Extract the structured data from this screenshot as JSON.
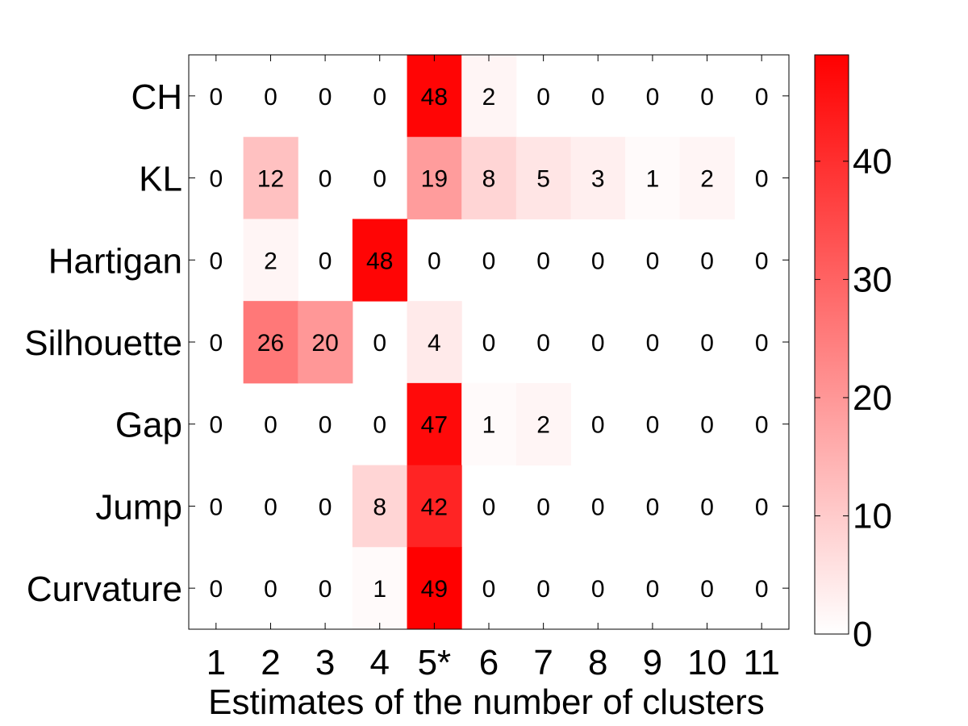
{
  "chart_data": {
    "type": "heatmap",
    "title": "",
    "xlabel": "Estimates of the number of clusters",
    "ylabel": "",
    "x_categories": [
      "1",
      "2",
      "3",
      "4",
      "5*",
      "6",
      "7",
      "8",
      "9",
      "10",
      "11"
    ],
    "y_categories": [
      "CH",
      "KL",
      "Hartigan",
      "Silhouette",
      "Gap",
      "Jump",
      "Curvature"
    ],
    "values": [
      [
        0,
        0,
        0,
        0,
        48,
        2,
        0,
        0,
        0,
        0,
        0
      ],
      [
        0,
        12,
        0,
        0,
        19,
        8,
        5,
        3,
        1,
        2,
        0
      ],
      [
        0,
        2,
        0,
        48,
        0,
        0,
        0,
        0,
        0,
        0,
        0
      ],
      [
        0,
        26,
        20,
        0,
        4,
        0,
        0,
        0,
        0,
        0,
        0
      ],
      [
        0,
        0,
        0,
        0,
        47,
        1,
        2,
        0,
        0,
        0,
        0
      ],
      [
        0,
        0,
        0,
        8,
        42,
        0,
        0,
        0,
        0,
        0,
        0
      ],
      [
        0,
        0,
        0,
        1,
        49,
        0,
        0,
        0,
        0,
        0,
        0
      ]
    ],
    "colorbar": {
      "min": 0,
      "max": 49,
      "ticks": [
        0,
        10,
        20,
        30,
        40
      ],
      "tick_labels": [
        "0",
        "10",
        "20",
        "30",
        "40"
      ],
      "low_color": "#ffffff",
      "high_color": "#ff0000"
    },
    "grid": false
  }
}
